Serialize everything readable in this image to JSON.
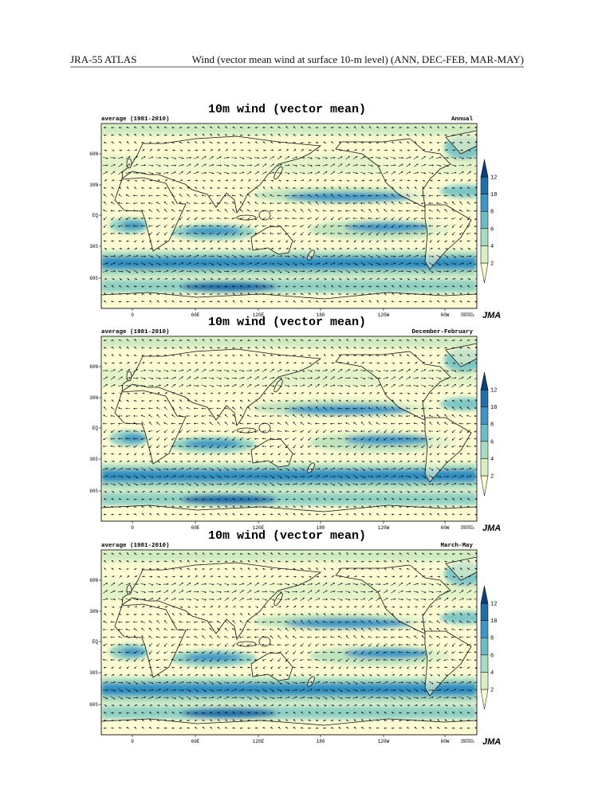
{
  "header": {
    "left": "JRA-55 ATLAS",
    "right": "Wind (vector mean wind at surface 10-m level) (ANN, DEC-FEB, MAR-MAY)"
  },
  "panels": [
    {
      "title": "10m wind (vector mean)",
      "subtitle_left": "average (1981-2010)",
      "subtitle_right": "Annual",
      "x_labels": [
        "0",
        "60E",
        "120E",
        "180",
        "120W",
        "60W"
      ],
      "y_labels": [
        "60N",
        "30N",
        "EQ",
        "30S",
        "60S"
      ],
      "colorbar_ticks": [
        2,
        4,
        6,
        8,
        10,
        12
      ],
      "reference_vector": "20m/sec",
      "logo": "JMA"
    },
    {
      "title": "10m wind (vector mean)",
      "subtitle_left": "average (1981-2010)",
      "subtitle_right": "December-February",
      "x_labels": [
        "0",
        "60E",
        "120E",
        "180",
        "120W",
        "60W"
      ],
      "y_labels": [
        "60N",
        "30N",
        "EQ",
        "30S",
        "60S"
      ],
      "colorbar_ticks": [
        2,
        4,
        6,
        8,
        10,
        12
      ],
      "reference_vector": "20m/sec",
      "logo": "JMA"
    },
    {
      "title": "10m wind (vector mean)",
      "subtitle_left": "average (1981-2010)",
      "subtitle_right": "March-May",
      "x_labels": [
        "0",
        "60E",
        "120E",
        "180",
        "120W",
        "60W"
      ],
      "y_labels": [
        "60N",
        "30N",
        "EQ",
        "30S",
        "60S"
      ],
      "colorbar_ticks": [
        2,
        4,
        6,
        8,
        10,
        12
      ],
      "reference_vector": "20m/sec",
      "logo": "JMA"
    }
  ]
}
